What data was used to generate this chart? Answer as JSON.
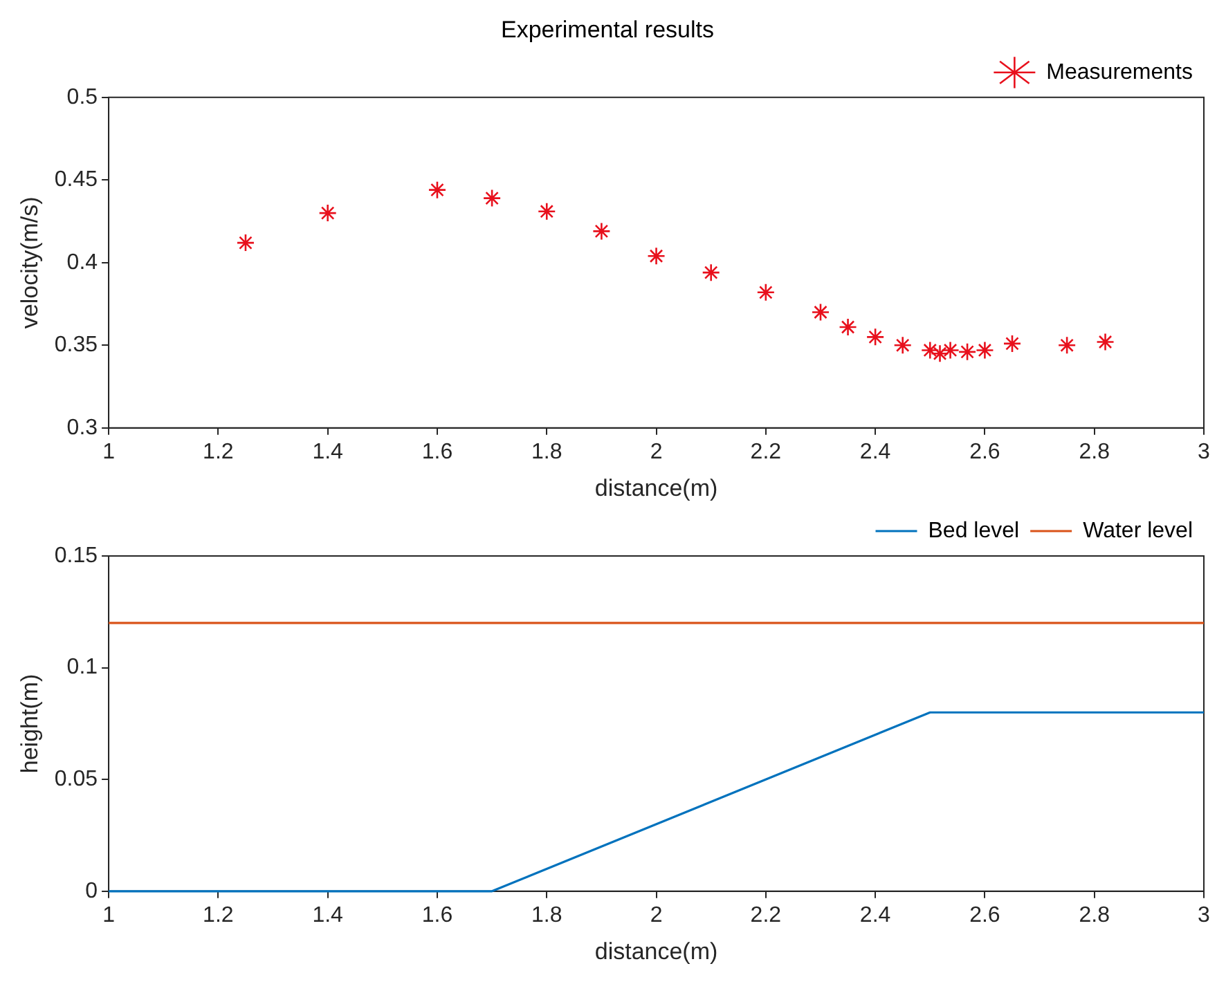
{
  "chart_data": [
    {
      "type": "scatter",
      "title": "Experimental results",
      "xlabel": "distance(m)",
      "ylabel": "velocity(m/s)",
      "series": [
        {
          "name": "Measurements",
          "color": "#e8101c",
          "x": [
            1.25,
            1.4,
            1.6,
            1.7,
            1.8,
            1.9,
            2.0,
            2.1,
            2.2,
            2.3,
            2.35,
            2.4,
            2.45,
            2.5,
            2.518,
            2.537,
            2.568,
            2.6,
            2.65,
            2.75,
            2.82
          ],
          "values": [
            0.412,
            0.43,
            0.444,
            0.439,
            0.431,
            0.419,
            0.404,
            0.394,
            0.382,
            0.37,
            0.361,
            0.355,
            0.35,
            0.347,
            0.345,
            0.347,
            0.346,
            0.347,
            0.351,
            0.35,
            0.352
          ]
        }
      ],
      "xlim": [
        1,
        3
      ],
      "xticks": [
        1,
        1.2,
        1.4,
        1.6,
        1.8,
        2,
        2.2,
        2.4,
        2.6,
        2.8,
        3
      ],
      "ylim": [
        0.3,
        0.5
      ],
      "yticks": [
        0.3,
        0.35,
        0.4,
        0.45,
        0.5
      ],
      "marker": "cross",
      "legend": "top right",
      "grid": false
    },
    {
      "type": "line",
      "xlabel": "distance(m)",
      "ylabel": "height(m)",
      "series": [
        {
          "name": "Bed level",
          "color": "#0072bd",
          "x": [
            1,
            1.7,
            2.5,
            3
          ],
          "values": [
            0,
            0,
            0.08,
            0.08
          ]
        },
        {
          "name": "Water level",
          "color": "#d95319",
          "x": [
            1,
            3
          ],
          "values": [
            0.12,
            0.12
          ]
        }
      ],
      "xlim": [
        1,
        3
      ],
      "xticks": [
        1,
        1.2,
        1.4,
        1.6,
        1.8,
        2,
        2.2,
        2.4,
        2.6,
        2.8,
        3
      ],
      "ylim": [
        0,
        0.15
      ],
      "yticks": [
        0,
        0.05,
        0.1,
        0.15
      ],
      "marker": "none",
      "line_style": "solid",
      "legend": "top right",
      "grid": false
    }
  ]
}
